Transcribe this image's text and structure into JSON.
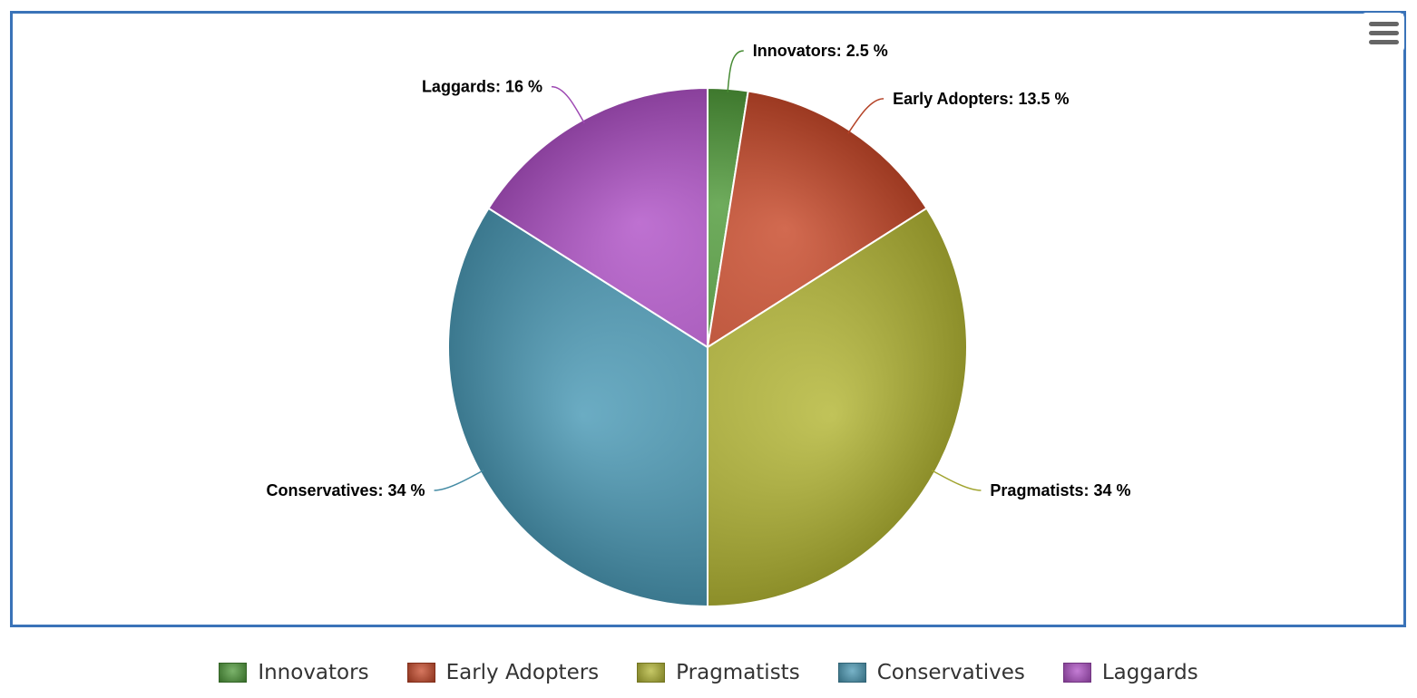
{
  "chart_data": {
    "type": "pie",
    "title": "",
    "categories": [
      "Innovators",
      "Early Adopters",
      "Pragmatists",
      "Conservatives",
      "Laggards"
    ],
    "values": [
      2.5,
      13.5,
      34,
      34,
      16
    ],
    "unit": "%",
    "data_labels": [
      "Innovators: 2.5 %",
      "Early Adopters: 13.5 %",
      "Pragmatists: 34 %",
      "Conservatives: 34 %",
      "Laggards: 16 %"
    ],
    "colors": [
      "#4f9a3a",
      "#c8492a",
      "#b3b634",
      "#4b9ab6",
      "#b052c7"
    ],
    "legend": {
      "placement": "bottom",
      "items": [
        "Innovators",
        "Early Adopters",
        "Pragmatists",
        "Conservatives",
        "Laggards"
      ]
    }
  },
  "toolbar": {
    "menu_icon": "hamburger-menu-icon"
  }
}
